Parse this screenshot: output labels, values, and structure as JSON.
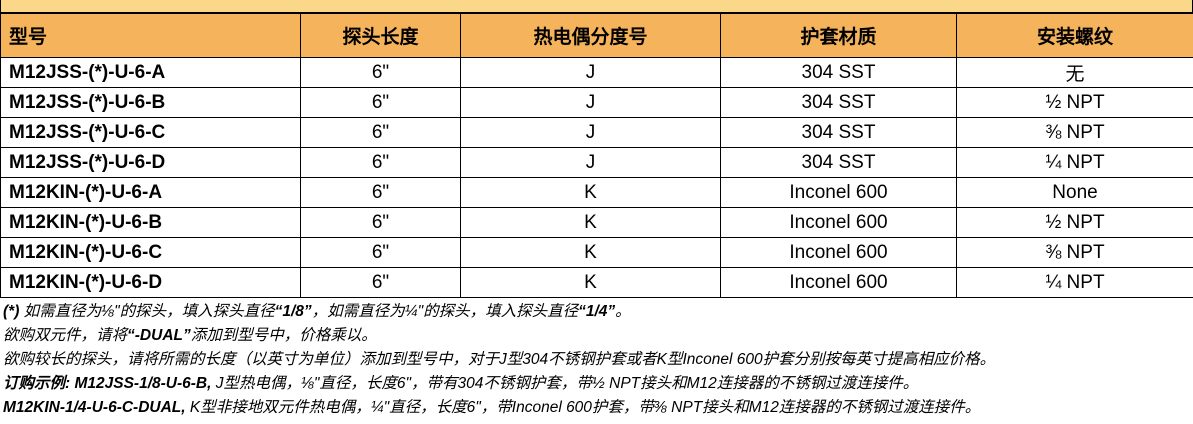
{
  "table": {
    "header": [
      "型号",
      "探头长度",
      "热电偶分度号",
      "护套材质",
      "安装螺纹"
    ],
    "rows": [
      [
        "M12JSS-(*)-U-6-A",
        "6\"",
        "J",
        "304 SST",
        "无"
      ],
      [
        "M12JSS-(*)-U-6-B",
        "6\"",
        "J",
        "304 SST",
        "½ NPT"
      ],
      [
        "M12JSS-(*)-U-6-C",
        "6\"",
        "J",
        "304 SST",
        "⅜ NPT"
      ],
      [
        "M12JSS-(*)-U-6-D",
        "6\"",
        "J",
        "304 SST",
        "¼ NPT"
      ],
      [
        "M12KIN-(*)-U-6-A",
        "6\"",
        "K",
        "Inconel 600",
        "None"
      ],
      [
        "M12KIN-(*)-U-6-B",
        "6\"",
        "K",
        "Inconel 600",
        "½ NPT"
      ],
      [
        "M12KIN-(*)-U-6-C",
        "6\"",
        "K",
        "Inconel 600",
        "⅜ NPT"
      ],
      [
        "M12KIN-(*)-U-6-D",
        "6\"",
        "K",
        "Inconel 600",
        "¼ NPT"
      ]
    ]
  },
  "notes": [
    [
      "(*)",
      " 如需直径为⅛\"的探头，填入探头直径",
      "“1/8”",
      "，如需直径为¼\"的探头，填入探头直径",
      "“1/4”",
      "。"
    ],
    [
      "欲购双元件，请将",
      "“-DUAL”",
      "添加到型号中，价格乘以。"
    ],
    [
      "欲购较长的探头，请将所需的长度（以英寸为单位）添加到型号中，对于J型304不锈钢护套或者K型Inconel 600护套分别按每英寸提高相应价格。"
    ],
    [
      "订购示例: M12JSS-1/8-U-6-B,",
      " J型热电偶，⅛\"直径，长度6\"，带有304不锈钢护套，带½ NPT接头和M12连接器的不锈钢过渡连接件。"
    ],
    [
      "M12KIN-1/4-U-6-C-DUAL,",
      " K型非接地双元件热电偶，¼\"直径，长度6\"，带Inconel 600护套，带⅜ NPT接头和M12连接器的不锈钢过渡连接件。"
    ]
  ]
}
